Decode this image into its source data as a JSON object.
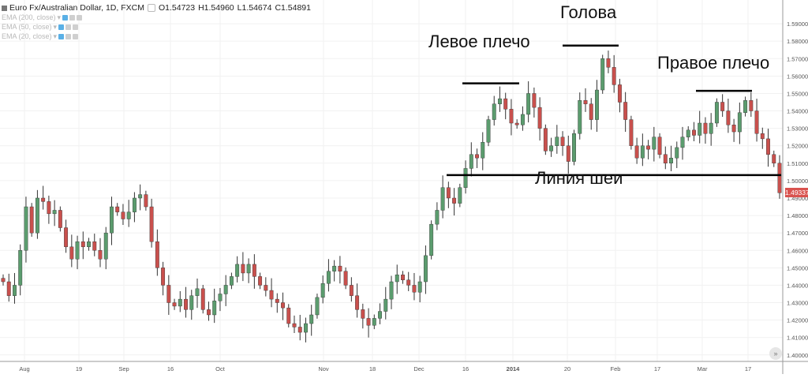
{
  "legend": {
    "symbol": "Euro Fx/Australian Dollar, 1D, FXCM",
    "open": "O1.54723",
    "high": "H1.54960",
    "low": "L1.54674",
    "close": "C1.54891",
    "indicators": [
      "EMA (200, close)",
      "EMA (50, close)",
      "EMA (20, close)"
    ]
  },
  "annotations": {
    "left_shoulder": "Левое плечо",
    "head": "Голова",
    "right_shoulder": "Правое плечо",
    "neckline": "Линия шеи"
  },
  "last_price_label": "1.49337",
  "scroll_button": "»",
  "colors": {
    "up": "#5b9c6e",
    "down": "#c9504d",
    "wick": "#333333",
    "grid": "#f1f1f1",
    "price_tag": "#d9534f"
  },
  "chart_data": {
    "type": "candlestick",
    "ylim": [
      1.399,
      1.6
    ],
    "y_ticks": [
      "1.59000",
      "1.58000",
      "1.57000",
      "1.56000",
      "1.55000",
      "1.54000",
      "1.53000",
      "1.52000",
      "1.51000",
      "1.50000",
      "1.49000",
      "1.48000",
      "1.47000",
      "1.46000",
      "1.45000",
      "1.44000",
      "1.43000",
      "1.42000",
      "1.41000",
      "1.40000"
    ],
    "x_ticks": [
      "Aug",
      "19",
      "Sep",
      "16",
      "Oct",
      "Nov",
      "18",
      "Dec",
      "16",
      "2014",
      "20",
      "Feb",
      "17",
      "Mar",
      "17"
    ],
    "neckline_price": 1.5032,
    "last_price": 1.49337,
    "shoulders": {
      "left": 1.5558,
      "head": 1.5775,
      "right": 1.5515
    },
    "close": [
      1.442,
      1.434,
      1.44,
      1.46,
      1.485,
      1.47,
      1.49,
      1.488,
      1.481,
      1.483,
      1.473,
      1.462,
      1.455,
      1.465,
      1.462,
      1.465,
      1.46,
      1.455,
      1.47,
      1.485,
      1.482,
      1.478,
      1.482,
      1.49,
      1.492,
      1.485,
      1.465,
      1.45,
      1.44,
      1.43,
      1.428,
      1.432,
      1.426,
      1.434,
      1.438,
      1.426,
      1.423,
      1.431,
      1.435,
      1.44,
      1.445,
      1.452,
      1.447,
      1.452,
      1.445,
      1.44,
      1.437,
      1.432,
      1.43,
      1.427,
      1.418,
      1.416,
      1.413,
      1.418,
      1.423,
      1.433,
      1.441,
      1.448,
      1.451,
      1.448,
      1.44,
      1.434,
      1.426,
      1.421,
      1.417,
      1.421,
      1.425,
      1.432,
      1.442,
      1.446,
      1.443,
      1.44,
      1.436,
      1.442,
      1.457,
      1.475,
      1.483,
      1.496,
      1.49,
      1.487,
      1.496,
      1.507,
      1.515,
      1.513,
      1.522,
      1.535,
      1.544,
      1.547,
      1.541,
      1.533,
      1.532,
      1.538,
      1.55,
      1.542,
      1.53,
      1.517,
      1.52,
      1.525,
      1.52,
      1.511,
      1.527,
      1.546,
      1.544,
      1.535,
      1.552,
      1.57,
      1.565,
      1.555,
      1.545,
      1.535,
      1.52,
      1.513,
      1.52,
      1.518,
      1.525,
      1.515,
      1.51,
      1.513,
      1.519,
      1.525,
      1.529,
      1.526,
      1.533,
      1.527,
      1.533,
      1.545,
      1.54,
      1.532,
      1.528,
      1.539,
      1.546,
      1.54,
      1.527,
      1.524,
      1.515,
      1.51,
      1.493
    ]
  }
}
